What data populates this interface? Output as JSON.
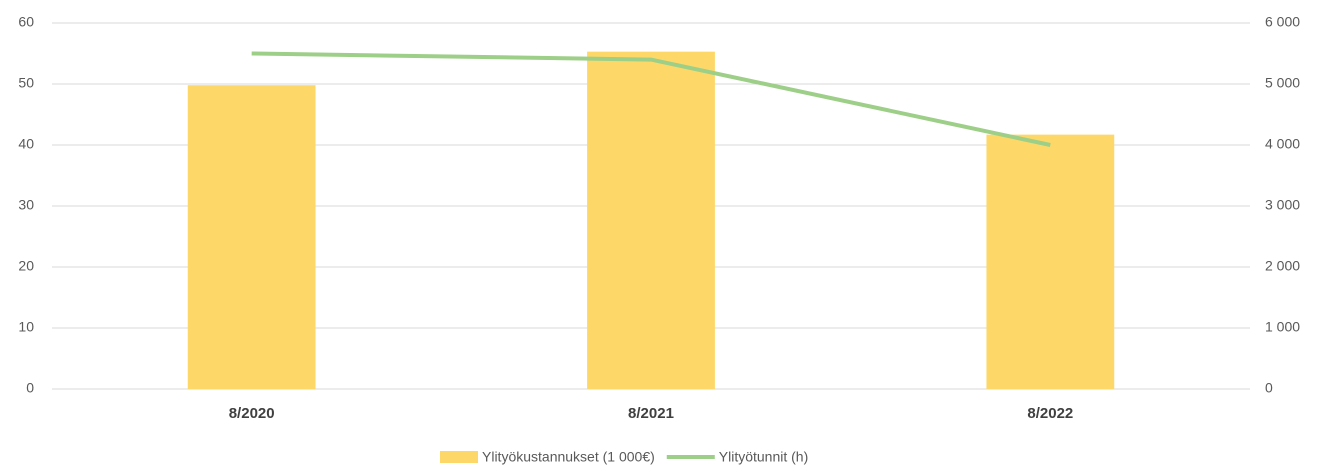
{
  "chart_data": {
    "type": "bar",
    "categories": [
      "8/2020",
      "8/2021",
      "8/2022"
    ],
    "series": [
      {
        "name": "Ylityökustannukset (1 000€)",
        "type": "bar",
        "color": "#fdd868",
        "values": [
          49.8,
          55.3,
          41.7
        ]
      },
      {
        "name": "Ylityötunnit (h)",
        "type": "line",
        "axis": "y2",
        "color": "#9dcf88",
        "values": [
          5500,
          5400,
          4000
        ]
      }
    ],
    "ylim": [
      0,
      60
    ],
    "yticks": [
      0,
      10,
      20,
      30,
      40,
      50,
      60
    ],
    "y2lim": [
      0,
      6000
    ],
    "y2ticks": [
      0,
      {
        "value": 1000,
        "label": "1 000"
      },
      {
        "value": 2000,
        "label": "2 000"
      },
      {
        "value": 3000,
        "label": "3 000"
      },
      {
        "value": 4000,
        "label": "4 000"
      },
      {
        "value": 5000,
        "label": "5 000"
      },
      {
        "value": 6000,
        "label": "6 000"
      }
    ],
    "grid": true,
    "legend": "bottom"
  }
}
